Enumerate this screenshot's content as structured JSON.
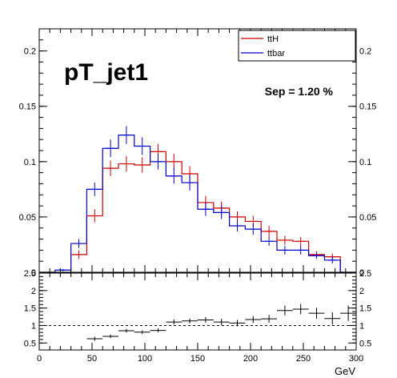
{
  "chart_data": [
    {
      "type": "histogram",
      "title": "pT_jet1",
      "annotation": "Sep = 1.20 %",
      "xlim": [
        0,
        300
      ],
      "ylim": [
        0,
        0.22
      ],
      "bin_edges": [
        0,
        15,
        30,
        45,
        60,
        75,
        90,
        105,
        120,
        135,
        150,
        165,
        180,
        195,
        210,
        225,
        240,
        255,
        270,
        285,
        300
      ],
      "yticks": [
        0,
        0.05,
        0.1,
        0.15,
        0.2
      ],
      "ytick_labels": [
        "0",
        "0.05",
        "0.1",
        "0.15",
        "0.2"
      ],
      "legend": {
        "position": "top-right",
        "entries": [
          "ttH",
          "ttbar"
        ]
      },
      "series": [
        {
          "name": "ttH",
          "color": "#cc0000",
          "values": [
            0.0,
            0.0,
            0.016,
            0.051,
            0.094,
            0.098,
            0.097,
            0.109,
            0.1,
            0.089,
            0.063,
            0.058,
            0.05,
            0.046,
            0.037,
            0.029,
            0.028,
            0.016,
            0.014,
            0.0
          ],
          "errors": [
            0,
            0,
            0.004,
            0.006,
            0.007,
            0.007,
            0.007,
            0.007,
            0.007,
            0.007,
            0.006,
            0.006,
            0.005,
            0.005,
            0.005,
            0.004,
            0.004,
            0.003,
            0.003,
            0
          ]
        },
        {
          "name": "ttbar",
          "color": "#0000cc",
          "values": [
            0.0,
            0.002,
            0.026,
            0.075,
            0.112,
            0.124,
            0.114,
            0.1,
            0.087,
            0.081,
            0.057,
            0.054,
            0.042,
            0.039,
            0.028,
            0.02,
            0.02,
            0.015,
            0.011,
            0.0
          ],
          "errors": [
            0,
            0.001,
            0.004,
            0.006,
            0.008,
            0.008,
            0.008,
            0.007,
            0.007,
            0.007,
            0.006,
            0.006,
            0.005,
            0.005,
            0.004,
            0.004,
            0.004,
            0.003,
            0.003,
            0
          ]
        }
      ]
    },
    {
      "type": "scatter",
      "subtype": "ratio",
      "xlim": [
        0,
        300
      ],
      "ylim": [
        0.3,
        2.5
      ],
      "x_error": 7.5,
      "reference_line": 1,
      "xticks": [
        0,
        50,
        100,
        150,
        200,
        250,
        300
      ],
      "xtick_labels": [
        "0",
        "50",
        "100",
        "150",
        "200",
        "250",
        "300"
      ],
      "yticks": [
        0.5,
        1,
        1.5,
        2,
        2.5
      ],
      "ytick_labels": [
        "0.5",
        "1",
        "1.5",
        "2",
        "2.5"
      ],
      "xlabel": "GeV",
      "points": [
        {
          "x": 52.5,
          "y": 0.62,
          "err": 0.06
        },
        {
          "x": 67.5,
          "y": 0.69,
          "err": 0.05
        },
        {
          "x": 82.5,
          "y": 0.85,
          "err": 0.05
        },
        {
          "x": 97.5,
          "y": 0.81,
          "err": 0.05
        },
        {
          "x": 112.5,
          "y": 0.86,
          "err": 0.06
        },
        {
          "x": 127.5,
          "y": 1.1,
          "err": 0.07
        },
        {
          "x": 142.5,
          "y": 1.13,
          "err": 0.07
        },
        {
          "x": 157.5,
          "y": 1.16,
          "err": 0.08
        },
        {
          "x": 172.5,
          "y": 1.1,
          "err": 0.09
        },
        {
          "x": 187.5,
          "y": 1.07,
          "err": 0.09
        },
        {
          "x": 202.5,
          "y": 1.17,
          "err": 0.1
        },
        {
          "x": 217.5,
          "y": 1.19,
          "err": 0.11
        },
        {
          "x": 232.5,
          "y": 1.43,
          "err": 0.14
        },
        {
          "x": 247.5,
          "y": 1.47,
          "err": 0.15
        },
        {
          "x": 262.5,
          "y": 1.35,
          "err": 0.16
        },
        {
          "x": 277.5,
          "y": 1.2,
          "err": 0.18
        },
        {
          "x": 292.5,
          "y": 1.35,
          "err": 0.22
        }
      ]
    }
  ]
}
